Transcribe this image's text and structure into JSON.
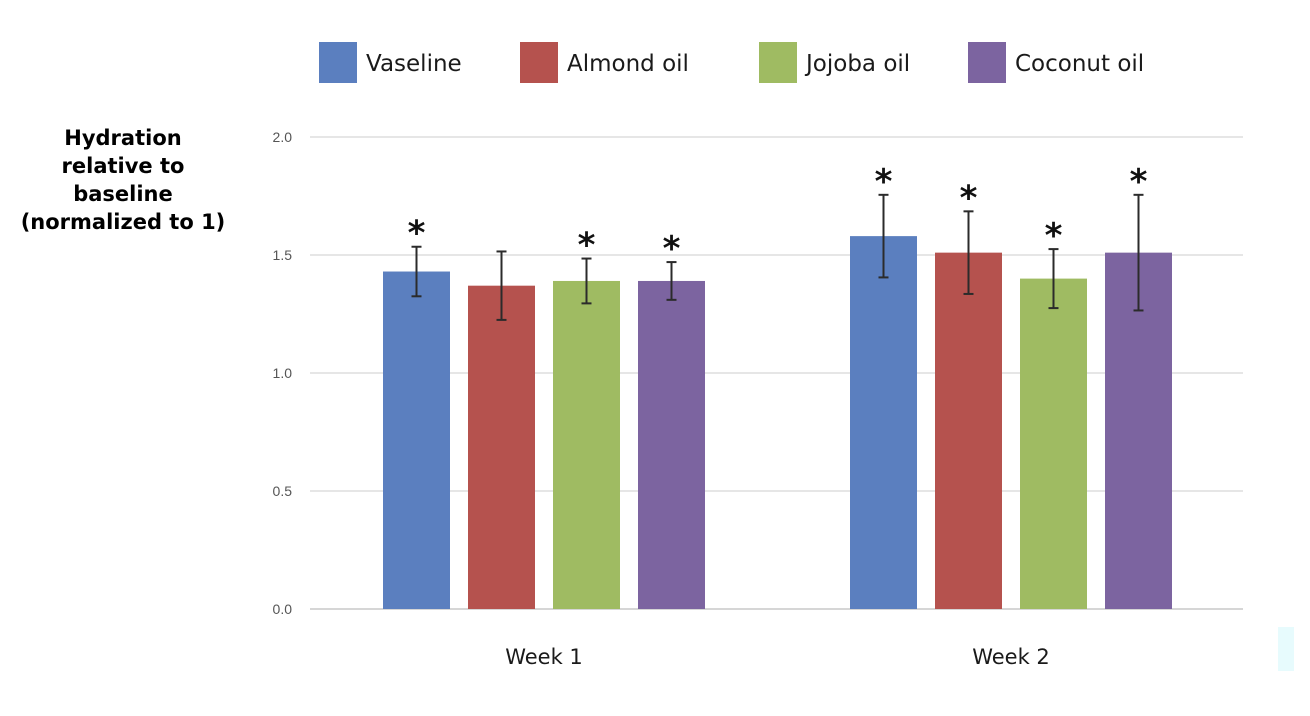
{
  "chart_data": {
    "type": "bar",
    "title": "",
    "xlabel": "",
    "ylabel": "Hydration relative to baseline (normalized to 1)",
    "ylabel_lines": [
      "Hydration",
      "relative to",
      "baseline",
      "(normalized to 1)"
    ],
    "categories": [
      "Week 1",
      "Week 2"
    ],
    "ylim": [
      0,
      2.0
    ],
    "yticks": [
      "0.0",
      "0.5",
      "1.0",
      "1.5",
      "2.0"
    ],
    "grid": true,
    "legend_position": "top",
    "significance_marker": "*",
    "series": [
      {
        "name": "Vaseline",
        "color": "#5b7fbf",
        "values": [
          1.43,
          1.58
        ],
        "error": [
          0.105,
          0.175
        ],
        "significant": [
          true,
          true
        ]
      },
      {
        "name": "Almond oil",
        "color": "#b5524e",
        "values": [
          1.37,
          1.51
        ],
        "error": [
          0.145,
          0.175
        ],
        "significant": [
          false,
          true
        ]
      },
      {
        "name": "Jojoba oil",
        "color": "#9fbb62",
        "values": [
          1.39,
          1.4
        ],
        "error": [
          0.095,
          0.125
        ],
        "significant": [
          true,
          true
        ]
      },
      {
        "name": "Coconut oil",
        "color": "#7c64a0",
        "values": [
          1.39,
          1.51
        ],
        "error": [
          0.08,
          0.245
        ],
        "significant": [
          true,
          true
        ]
      }
    ]
  }
}
